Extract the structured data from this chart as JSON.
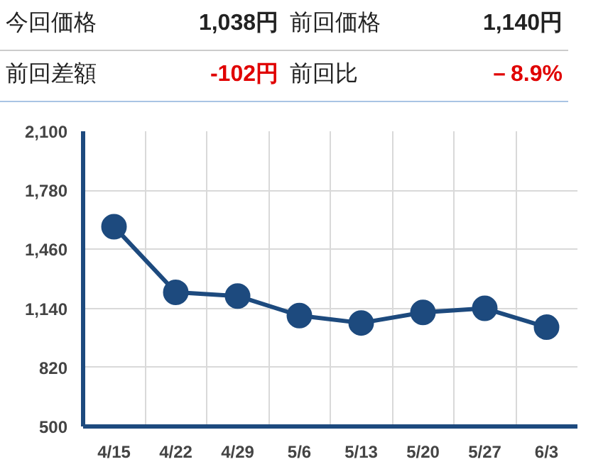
{
  "chart_data": {
    "type": "line",
    "categories": [
      "4/15",
      "4/22",
      "4/29",
      "5/6",
      "5/13",
      "5/20",
      "5/27",
      "6/3"
    ],
    "series": [
      {
        "color": "#1d4a7e",
        "values": [
          1583,
          1227,
          1207,
          1101,
          1061,
          1118,
          1140,
          1038
        ]
      }
    ],
    "ylim": [
      500,
      2100
    ],
    "yticks": [
      {
        "value": 500,
        "label": "500"
      },
      {
        "value": 820,
        "label": "820"
      },
      {
        "value": 1140,
        "label": "1,140"
      },
      {
        "value": 1460,
        "label": "1,460"
      },
      {
        "value": 1780,
        "label": "1,780"
      },
      {
        "value": 2100,
        "label": "2,100"
      }
    ],
    "grid": true,
    "marker": "circle",
    "line_style": "solid",
    "annotations": [
      "今回価格",
      "1,038円",
      "前回価格",
      "1,140円",
      "前回差額",
      "-102円",
      "前回比",
      "－8.9%"
    ]
  }
}
